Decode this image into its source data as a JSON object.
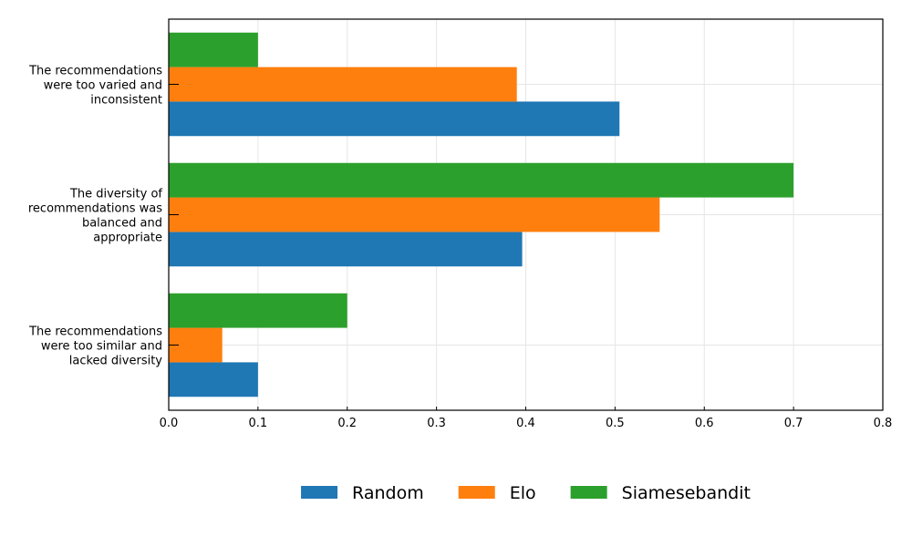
{
  "chart_data": {
    "type": "bar",
    "orientation": "horizontal",
    "title": "",
    "xlabel": "",
    "ylabel": "",
    "xlim": [
      0,
      0.8
    ],
    "xticks": [
      "0.0",
      "0.1",
      "0.2",
      "0.3",
      "0.4",
      "0.5",
      "0.6",
      "0.7",
      "0.8"
    ],
    "grid": true,
    "legend_position": "bottom-center",
    "categories": [
      [
        "The recommendations",
        "were too similar and",
        "lacked diversity"
      ],
      [
        "The diversity of",
        "recommendations was",
        "balanced and",
        "appropriate"
      ],
      [
        "The recommendations",
        "were too varied and",
        "inconsistent"
      ]
    ],
    "series": [
      {
        "name": "Random",
        "color": "#1f77b4",
        "values": [
          0.1,
          0.396,
          0.505
        ]
      },
      {
        "name": "Elo",
        "color": "#ff7f0e",
        "values": [
          0.06,
          0.55,
          0.39
        ]
      },
      {
        "name": "Siamesebandit",
        "color": "#2ca02c",
        "values": [
          0.2,
          0.7,
          0.1
        ]
      }
    ]
  }
}
